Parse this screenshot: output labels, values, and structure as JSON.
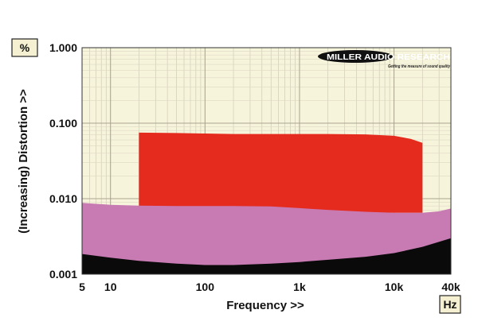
{
  "chart_data": {
    "type": "area",
    "title": "",
    "xlabel": "Frequency >>",
    "ylabel": "(Increasing) Distortion >>",
    "x_unit": "Hz",
    "y_unit": "%",
    "x_scale": "log",
    "y_scale": "log",
    "xlim": [
      5,
      40000
    ],
    "ylim": [
      0.001,
      1.0
    ],
    "x_ticks": [
      {
        "value": 5,
        "label": "5"
      },
      {
        "value": 10,
        "label": "10"
      },
      {
        "value": 100,
        "label": "100"
      },
      {
        "value": 1000,
        "label": "1k"
      },
      {
        "value": 10000,
        "label": "10k"
      },
      {
        "value": 40000,
        "label": "40k"
      }
    ],
    "y_ticks": [
      {
        "value": 0.001,
        "label": "0.001"
      },
      {
        "value": 0.01,
        "label": "0.010"
      },
      {
        "value": 0.1,
        "label": "0.100"
      },
      {
        "value": 1.0,
        "label": "1.000"
      }
    ],
    "grid": true,
    "background_color": "#f7f4dc",
    "series": [
      {
        "color": "#0a0a0a",
        "points": [
          [
            5,
            0.00185
          ],
          [
            10,
            0.00165
          ],
          [
            20,
            0.0015
          ],
          [
            50,
            0.00138
          ],
          [
            100,
            0.00132
          ],
          [
            200,
            0.00132
          ],
          [
            500,
            0.00138
          ],
          [
            1000,
            0.00145
          ],
          [
            2000,
            0.00155
          ],
          [
            5000,
            0.0017
          ],
          [
            10000,
            0.0019
          ],
          [
            20000,
            0.0023
          ],
          [
            40000,
            0.003
          ]
        ]
      },
      {
        "color": "#c87ab3",
        "points": [
          [
            5,
            0.0088
          ],
          [
            10,
            0.0083
          ],
          [
            20,
            0.0081
          ],
          [
            50,
            0.008
          ],
          [
            100,
            0.008
          ],
          [
            200,
            0.008
          ],
          [
            500,
            0.0079
          ],
          [
            1000,
            0.0075
          ],
          [
            2000,
            0.0071
          ],
          [
            5000,
            0.0067
          ],
          [
            10000,
            0.0065
          ],
          [
            20000,
            0.0065
          ],
          [
            30000,
            0.0068
          ],
          [
            40000,
            0.0074
          ]
        ]
      },
      {
        "color": "#e52a1e",
        "points": [
          [
            20,
            0.075
          ],
          [
            50,
            0.074
          ],
          [
            100,
            0.073
          ],
          [
            200,
            0.072
          ],
          [
            500,
            0.072
          ],
          [
            1000,
            0.072
          ],
          [
            2000,
            0.072
          ],
          [
            5000,
            0.071
          ],
          [
            10000,
            0.068
          ],
          [
            15000,
            0.062
          ],
          [
            20000,
            0.055
          ]
        ]
      }
    ]
  },
  "logo": {
    "name": "MILLER AUDIO RESEARCH",
    "tagline": "Getting the measure of sound quality"
  }
}
